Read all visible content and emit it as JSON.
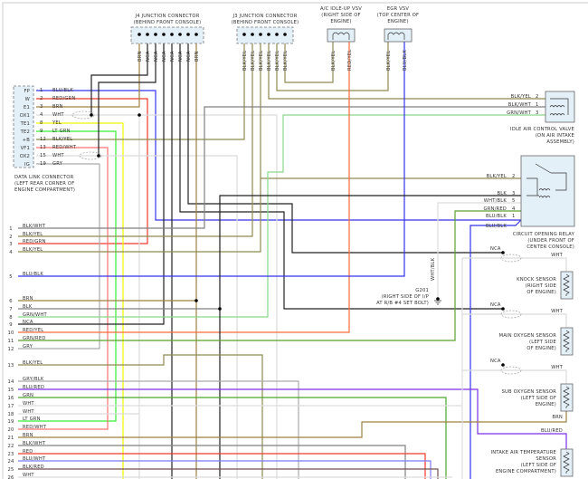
{
  "j4": {
    "title": "J4 JUNCTION CONNECTOR",
    "location": "(BEHIND FRONT CONSOLE)",
    "pins": [
      "BRN",
      "NCA",
      "NCA",
      "NCA",
      "NCA",
      "NCA",
      "NCA",
      "BRN"
    ]
  },
  "j3": {
    "title": "J3 JUNCTION CONNECTOR",
    "location": "(BEHIND FRONT CONSOLE)",
    "pins": [
      "BLK/YEL",
      "BLK/YEL",
      "BLK/YEL",
      "BLK/YEL",
      "BLK/YEL",
      "BLK/YEL"
    ]
  },
  "ac_vsv": {
    "caption": [
      "A/C IDLE-UP VSV",
      "(RIGHT SIDE OF",
      "ENGINE)"
    ],
    "pins": [
      "BLK/YEL",
      "RED/YEL"
    ]
  },
  "egr_vsv": {
    "caption": [
      "EGR VSV",
      "(TOP CENTER OF",
      "ENGINE)"
    ],
    "pins": [
      "BLK/YEL",
      "BLU/BLK"
    ]
  },
  "dlc": {
    "terminals": [
      {
        "name": "FP",
        "pin": "1",
        "wire": "BLU/BLK"
      },
      {
        "name": "W",
        "pin": "2",
        "wire": "RED/GRN"
      },
      {
        "name": "E1",
        "pin": "3",
        "wire": "BRN"
      },
      {
        "name": "OX1",
        "pin": "4",
        "wire": "WHT"
      },
      {
        "name": "TE1",
        "pin": "8",
        "wire": "YEL"
      },
      {
        "name": "TE2",
        "pin": "9",
        "wire": "LT GRN"
      },
      {
        "name": "+B",
        "pin": "12",
        "wire": "BLK/YEL"
      },
      {
        "name": "VF1",
        "pin": "13",
        "wire": "RED/WHT"
      },
      {
        "name": "OX2",
        "pin": "15",
        "wire": "WHT"
      },
      {
        "name": "IG",
        "pin": "19",
        "wire": "GRY"
      }
    ],
    "caption": [
      "DATA LINK CONNECTOR",
      "(LEFT REAR CORNER OF",
      "ENGINE COMPARTMENT)"
    ]
  },
  "iac": {
    "wires": [
      {
        "wire": "BLK/YEL",
        "pin": "2"
      },
      {
        "wire": "BLK/WHT",
        "pin": "1"
      },
      {
        "wire": "GRN/WHT",
        "pin": "3"
      }
    ],
    "caption": [
      "IDLE AIR CONTROL VALVE",
      "(ON AIR INTAKE",
      "ASSEMBLY)"
    ]
  },
  "relay": {
    "wires": [
      {
        "wire": "BLK/YEL",
        "pin": "2"
      },
      {
        "wire": "BLK",
        "pin": "3"
      },
      {
        "wire": "WHT/BLK",
        "pin": "5"
      },
      {
        "wire": "GRN/RED",
        "pin": "4"
      },
      {
        "wire": "BLU/BLK",
        "pin": "1"
      }
    ],
    "extra_wire": "BLU/BLK",
    "caption": [
      "CIRCUIT OPENING RELAY",
      "(UNDER FRONT OF",
      "CENTER CONSOLE)"
    ]
  },
  "ground": {
    "wire": "WHT/BLK",
    "caption": [
      "G201",
      "(RIGHT SIDE OF I/P",
      "AT R/B #4 SET BOLT)"
    ]
  },
  "sensors": [
    {
      "shield_wire": "NCA",
      "signal_wire": "WHT",
      "caption": [
        "KNOCK SENSOR",
        "(RIGHT SIDE",
        "OF ENGINE)"
      ]
    },
    {
      "shield_wire": "NCA",
      "signal_wire": "WHT",
      "caption": [
        "MAIN OXYGEN SENSOR",
        "(LEFT SIDE",
        "OF ENGINE)"
      ]
    },
    {
      "shield_wire": "NCA",
      "signal_wire": "WHT",
      "caption": [
        "SUB OXYGEN SENSOR",
        "(LEFT SIDE OF",
        "ENGINE)"
      ],
      "ground_wire": "BRN"
    },
    {
      "signal_wire": "BLU/RED",
      "caption": [
        "INTAKE AIR TEMPERATURE",
        "SENSOR",
        "(LEFT SIDE OF",
        "ENGINE COMPARTMENT)"
      ]
    }
  ],
  "left_rows": [
    {
      "num": "1",
      "wire": "BLK/WHT"
    },
    {
      "num": "2",
      "wire": "BLK/YEL"
    },
    {
      "num": "3",
      "wire": "RED/GRN"
    },
    {
      "num": "4",
      "wire": "BLK/YEL"
    },
    {
      "num": "5",
      "wire": "BLU/BLK"
    },
    {
      "num": "6",
      "wire": "BRN"
    },
    {
      "num": "7",
      "wire": "BLK"
    },
    {
      "num": "8",
      "wire": "GRN/WHT"
    },
    {
      "num": "9",
      "wire": "NCA"
    },
    {
      "num": "10",
      "wire": "RED/YEL"
    },
    {
      "num": "11",
      "wire": "GRN/RED"
    },
    {
      "num": "12",
      "wire": "GRY"
    },
    {
      "num": "13",
      "wire": "BLK/YEL"
    },
    {
      "num": "14",
      "wire": "GRY/BLK"
    },
    {
      "num": "15",
      "wire": "BLU/RED"
    },
    {
      "num": "16",
      "wire": "GRN"
    },
    {
      "num": "17",
      "wire": "WHT"
    },
    {
      "num": "18",
      "wire": "WHT"
    },
    {
      "num": "19",
      "wire": "LT GRN"
    },
    {
      "num": "20",
      "wire": "RED/WHT"
    },
    {
      "num": "21",
      "wire": "BRN"
    },
    {
      "num": "22",
      "wire": "BLK/WHT"
    },
    {
      "num": "23",
      "wire": "RED"
    },
    {
      "num": "24",
      "wire": "BLU/WHT"
    },
    {
      "num": "25",
      "wire": "BLK/RED"
    },
    {
      "num": "26",
      "wire": "WHT"
    }
  ],
  "wire_colors": {
    "BLK": "#222222",
    "BRN": "#9c8040",
    "BLKYEL": "#8f8a50",
    "GRY": "#aaaaaa",
    "WHT": "#dcdcdc",
    "BLU": "#3434ee",
    "RED": "#f03a2a",
    "REDYEL": "#ff6a3a",
    "GRN": "#4aa82a",
    "LTGRN": "#36ee36",
    "YEL": "#f5f500",
    "GRNWHT": "#8ad88a",
    "GRNRED": "#5aa030",
    "BLKWHT": "#808080",
    "BLURED": "#7a30e8",
    "REDWHT": "#ff7070",
    "BLUWHT": "#7a7aff",
    "BLKRED": "#705050"
  }
}
